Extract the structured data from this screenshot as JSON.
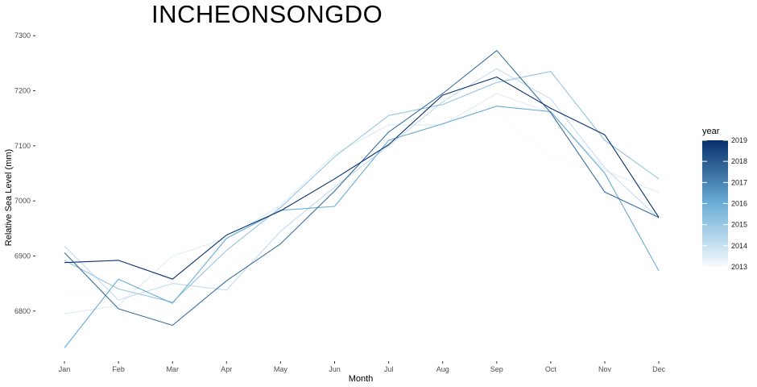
{
  "chart_data": {
    "type": "line",
    "title": "INCHEONSONGDO",
    "xlabel": "Month",
    "ylabel": "Relative Sea Level (mm)",
    "categories": [
      "Jan",
      "Feb",
      "Mar",
      "Apr",
      "May",
      "Jun",
      "Jul",
      "Aug",
      "Sep",
      "Oct",
      "Nov",
      "Dec"
    ],
    "ylim": [
      6725,
      7315
    ],
    "yticks": [
      6800,
      6900,
      7000,
      7100,
      7200,
      7300
    ],
    "grid": false,
    "legend": {
      "title": "year",
      "placement": "right",
      "min": 2013,
      "max": 2019,
      "ticks": [
        "2013",
        "2014",
        "2015",
        "2016",
        "2017",
        "2018",
        "2019"
      ]
    },
    "colors": {
      "low": "#f7fbff",
      "high": "#08306b"
    },
    "series": [
      {
        "name": "2013",
        "values": [
          6832,
          6836,
          6790,
          6880,
          6942,
          7030,
          7105,
          7140,
          7160,
          7080,
          7055,
          6958
        ]
      },
      {
        "name": "2014",
        "values": [
          6795,
          6810,
          6900,
          6932,
          6992,
          7085,
          7138,
          7138,
          7195,
          7160,
          7055,
          7015
        ]
      },
      {
        "name": "2015",
        "values": [
          6918,
          6820,
          6850,
          6838,
          6945,
          7025,
          7100,
          7180,
          7240,
          7185,
          7060,
          6968
        ]
      },
      {
        "name": "2016",
        "values": [
          6892,
          6840,
          6816,
          6910,
          6988,
          7080,
          7155,
          7175,
          7215,
          7235,
          7110,
          7040
        ]
      },
      {
        "name": "2017",
        "values": [
          6733,
          6858,
          6814,
          6932,
          6983,
          6990,
          7110,
          7140,
          7172,
          7162,
          7050,
          6873
        ]
      },
      {
        "name": "2018",
        "values": [
          6906,
          6804,
          6774,
          6855,
          6922,
          7018,
          7125,
          7195,
          7273,
          7160,
          7016,
          6970
        ]
      },
      {
        "name": "2019",
        "values": [
          6888,
          6892,
          6858,
          6938,
          6982,
          7040,
          7102,
          7192,
          7225,
          7168,
          7120,
          6970
        ]
      }
    ]
  }
}
